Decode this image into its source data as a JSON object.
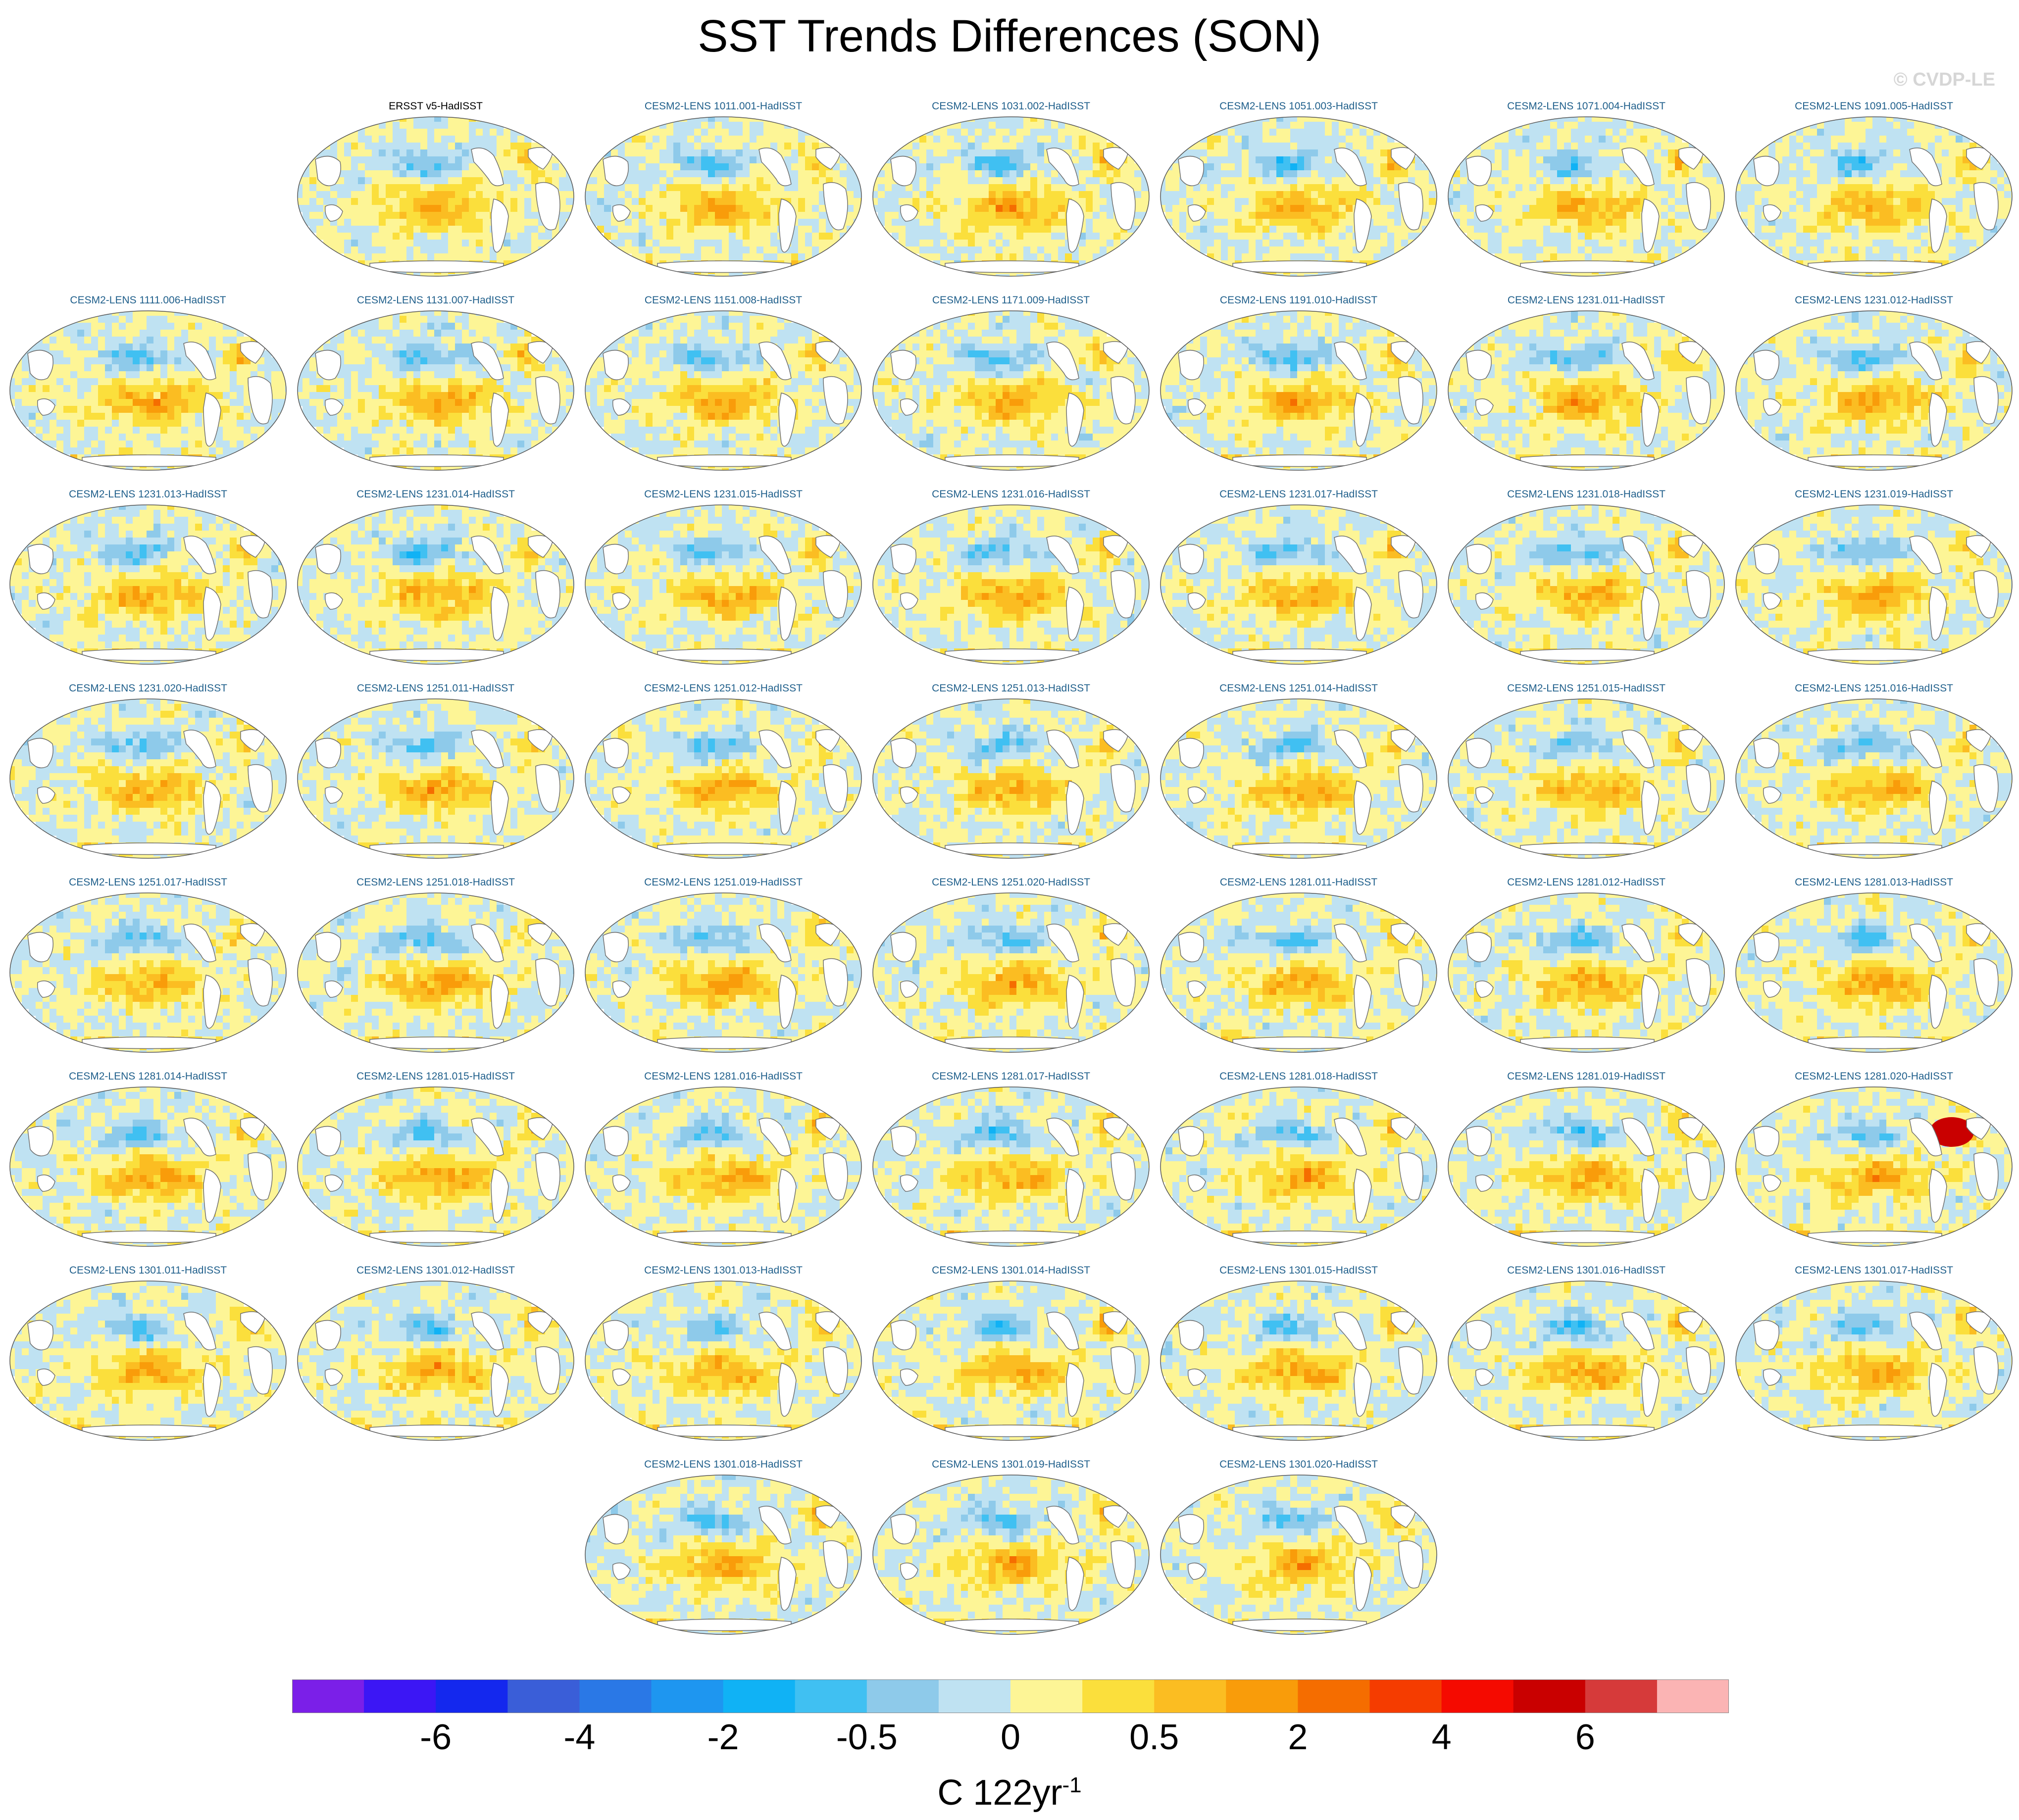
{
  "title": "SST Trends Differences (SON)",
  "watermark": "© CVDP-LE",
  "units": {
    "main": "C 122yr",
    "exponent": "-1"
  },
  "colors": {
    "observation_title": "#000000",
    "model_title": "#1f5f8b",
    "land": "#ffffff",
    "coast": "#6f6f6f"
  },
  "chart_data": {
    "type": "heatmap",
    "projection": "global map panels (Robinson-like)",
    "colorbar": {
      "colors": [
        "#7b1fe8",
        "#3c16f5",
        "#1428ee",
        "#3a5ed8",
        "#2a78e6",
        "#1e96f0",
        "#10b2f5",
        "#40c0f2",
        "#8ecaea",
        "#bfe2f2",
        "#fdf596",
        "#fbdf3c",
        "#fbbd22",
        "#f99c0a",
        "#f56d00",
        "#f53c00",
        "#f50a00",
        "#c90000",
        "#d63a3a",
        "#fbb4b4"
      ],
      "tick_labels": [
        "-6",
        "-4",
        "-2",
        "-0.5",
        "0",
        "0.5",
        "2",
        "4",
        "6"
      ],
      "tick_boundaries": [
        2,
        4,
        6,
        8,
        10,
        12,
        14,
        16,
        18
      ]
    },
    "panels": [
      {
        "label": "ERSST v5-HadISST",
        "row": 0,
        "col": 1
      },
      {
        "label": "CESM2-LENS 1011.001-HadISST",
        "row": 0,
        "col": 2
      },
      {
        "label": "CESM2-LENS 1031.002-HadISST",
        "row": 0,
        "col": 3
      },
      {
        "label": "CESM2-LENS 1051.003-HadISST",
        "row": 0,
        "col": 4
      },
      {
        "label": "CESM2-LENS 1071.004-HadISST",
        "row": 0,
        "col": 5
      },
      {
        "label": "CESM2-LENS 1091.005-HadISST",
        "row": 0,
        "col": 6
      },
      {
        "label": "CESM2-LENS 1111.006-HadISST",
        "row": 1,
        "col": 0
      },
      {
        "label": "CESM2-LENS 1131.007-HadISST",
        "row": 1,
        "col": 1
      },
      {
        "label": "CESM2-LENS 1151.008-HadISST",
        "row": 1,
        "col": 2
      },
      {
        "label": "CESM2-LENS 1171.009-HadISST",
        "row": 1,
        "col": 3
      },
      {
        "label": "CESM2-LENS 1191.010-HadISST",
        "row": 1,
        "col": 4
      },
      {
        "label": "CESM2-LENS 1231.011-HadISST",
        "row": 1,
        "col": 5
      },
      {
        "label": "CESM2-LENS 1231.012-HadISST",
        "row": 1,
        "col": 6
      },
      {
        "label": "CESM2-LENS 1231.013-HadISST",
        "row": 2,
        "col": 0
      },
      {
        "label": "CESM2-LENS 1231.014-HadISST",
        "row": 2,
        "col": 1
      },
      {
        "label": "CESM2-LENS 1231.015-HadISST",
        "row": 2,
        "col": 2
      },
      {
        "label": "CESM2-LENS 1231.016-HadISST",
        "row": 2,
        "col": 3
      },
      {
        "label": "CESM2-LENS 1231.017-HadISST",
        "row": 2,
        "col": 4
      },
      {
        "label": "CESM2-LENS 1231.018-HadISST",
        "row": 2,
        "col": 5
      },
      {
        "label": "CESM2-LENS 1231.019-HadISST",
        "row": 2,
        "col": 6
      },
      {
        "label": "CESM2-LENS 1231.020-HadISST",
        "row": 3,
        "col": 0
      },
      {
        "label": "CESM2-LENS 1251.011-HadISST",
        "row": 3,
        "col": 1
      },
      {
        "label": "CESM2-LENS 1251.012-HadISST",
        "row": 3,
        "col": 2
      },
      {
        "label": "CESM2-LENS 1251.013-HadISST",
        "row": 3,
        "col": 3
      },
      {
        "label": "CESM2-LENS 1251.014-HadISST",
        "row": 3,
        "col": 4
      },
      {
        "label": "CESM2-LENS 1251.015-HadISST",
        "row": 3,
        "col": 5
      },
      {
        "label": "CESM2-LENS 1251.016-HadISST",
        "row": 3,
        "col": 6
      },
      {
        "label": "CESM2-LENS 1251.017-HadISST",
        "row": 4,
        "col": 0
      },
      {
        "label": "CESM2-LENS 1251.018-HadISST",
        "row": 4,
        "col": 1
      },
      {
        "label": "CESM2-LENS 1251.019-HadISST",
        "row": 4,
        "col": 2
      },
      {
        "label": "CESM2-LENS 1251.020-HadISST",
        "row": 4,
        "col": 3
      },
      {
        "label": "CESM2-LENS 1281.011-HadISST",
        "row": 4,
        "col": 4
      },
      {
        "label": "CESM2-LENS 1281.012-HadISST",
        "row": 4,
        "col": 5
      },
      {
        "label": "CESM2-LENS 1281.013-HadISST",
        "row": 4,
        "col": 6
      },
      {
        "label": "CESM2-LENS 1281.014-HadISST",
        "row": 5,
        "col": 0
      },
      {
        "label": "CESM2-LENS 1281.015-HadISST",
        "row": 5,
        "col": 1
      },
      {
        "label": "CESM2-LENS 1281.016-HadISST",
        "row": 5,
        "col": 2
      },
      {
        "label": "CESM2-LENS 1281.017-HadISST",
        "row": 5,
        "col": 3
      },
      {
        "label": "CESM2-LENS 1281.018-HadISST",
        "row": 5,
        "col": 4
      },
      {
        "label": "CESM2-LENS 1281.019-HadISST",
        "row": 5,
        "col": 5
      },
      {
        "label": "CESM2-LENS 1281.020-HadISST",
        "row": 5,
        "col": 6
      },
      {
        "label": "CESM2-LENS 1301.011-HadISST",
        "row": 6,
        "col": 0
      },
      {
        "label": "CESM2-LENS 1301.012-HadISST",
        "row": 6,
        "col": 1
      },
      {
        "label": "CESM2-LENS 1301.013-HadISST",
        "row": 6,
        "col": 2
      },
      {
        "label": "CESM2-LENS 1301.014-HadISST",
        "row": 6,
        "col": 3
      },
      {
        "label": "CESM2-LENS 1301.015-HadISST",
        "row": 6,
        "col": 4
      },
      {
        "label": "CESM2-LENS 1301.016-HadISST",
        "row": 6,
        "col": 5
      },
      {
        "label": "CESM2-LENS 1301.017-HadISST",
        "row": 6,
        "col": 6
      },
      {
        "label": "CESM2-LENS 1301.018-HadISST",
        "row": 7,
        "col": 2
      },
      {
        "label": "CESM2-LENS 1301.019-HadISST",
        "row": 7,
        "col": 3
      },
      {
        "label": "CESM2-LENS 1301.020-HadISST",
        "row": 7,
        "col": 4
      }
    ]
  }
}
